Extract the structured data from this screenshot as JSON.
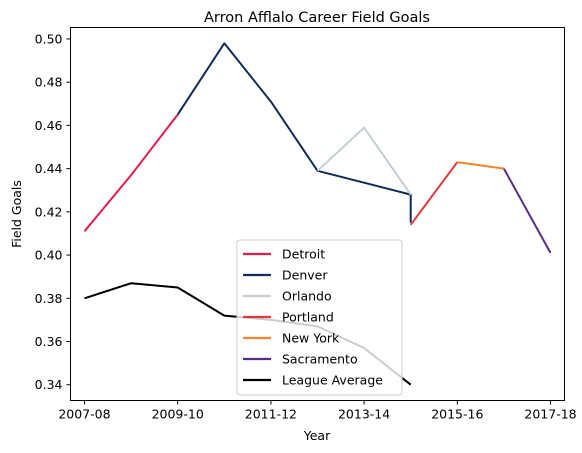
{
  "chart_data": {
    "type": "line",
    "title": "Arron Afflalo Career Field Goals",
    "xlabel": "Year",
    "ylabel": "Field Goals",
    "x_ticks": [
      "2007-08",
      "2009-10",
      "2011-12",
      "2013-14",
      "2015-16",
      "2017-18"
    ],
    "y_ticks": [
      "0.34",
      "0.36",
      "0.38",
      "0.40",
      "0.42",
      "0.44",
      "0.46",
      "0.48",
      "0.50"
    ],
    "xlim": [
      -0.3,
      10.3
    ],
    "ylim": [
      0.3327,
      0.5053
    ],
    "grid": false,
    "legend_position": "lower center",
    "series": [
      {
        "name": "Detroit",
        "color": "#e11f4e",
        "points": [
          [
            0,
            0.411
          ],
          [
            1,
            0.437
          ],
          [
            2,
            0.465
          ]
        ]
      },
      {
        "name": "Denver",
        "color": "#0e2c59",
        "points": [
          [
            2,
            0.465
          ],
          [
            3,
            0.498
          ],
          [
            4,
            0.471
          ],
          [
            5,
            0.439
          ],
          [
            7,
            0.428
          ],
          [
            7,
            0.415
          ]
        ]
      },
      {
        "name": "Orlando",
        "color": "#c4ced3",
        "points": [
          [
            5,
            0.439
          ],
          [
            6,
            0.459
          ],
          [
            7,
            0.428
          ]
        ]
      },
      {
        "name": "Portland",
        "color": "#e03a3e",
        "points": [
          [
            7,
            0.414
          ],
          [
            8,
            0.443
          ]
        ]
      },
      {
        "name": "New York",
        "color": "#f58426",
        "points": [
          [
            8,
            0.443
          ],
          [
            9,
            0.44
          ]
        ]
      },
      {
        "name": "Sacramento",
        "color": "#5a2d81",
        "points": [
          [
            9,
            0.44
          ],
          [
            10,
            0.401
          ]
        ]
      },
      {
        "name": "League Average",
        "color": "#000000",
        "points": [
          [
            0,
            0.38
          ],
          [
            1,
            0.387
          ],
          [
            2,
            0.385
          ],
          [
            3,
            0.372
          ],
          [
            4,
            0.37
          ],
          [
            5,
            0.367
          ],
          [
            6,
            0.357
          ],
          [
            7,
            0.34
          ]
        ]
      }
    ]
  }
}
